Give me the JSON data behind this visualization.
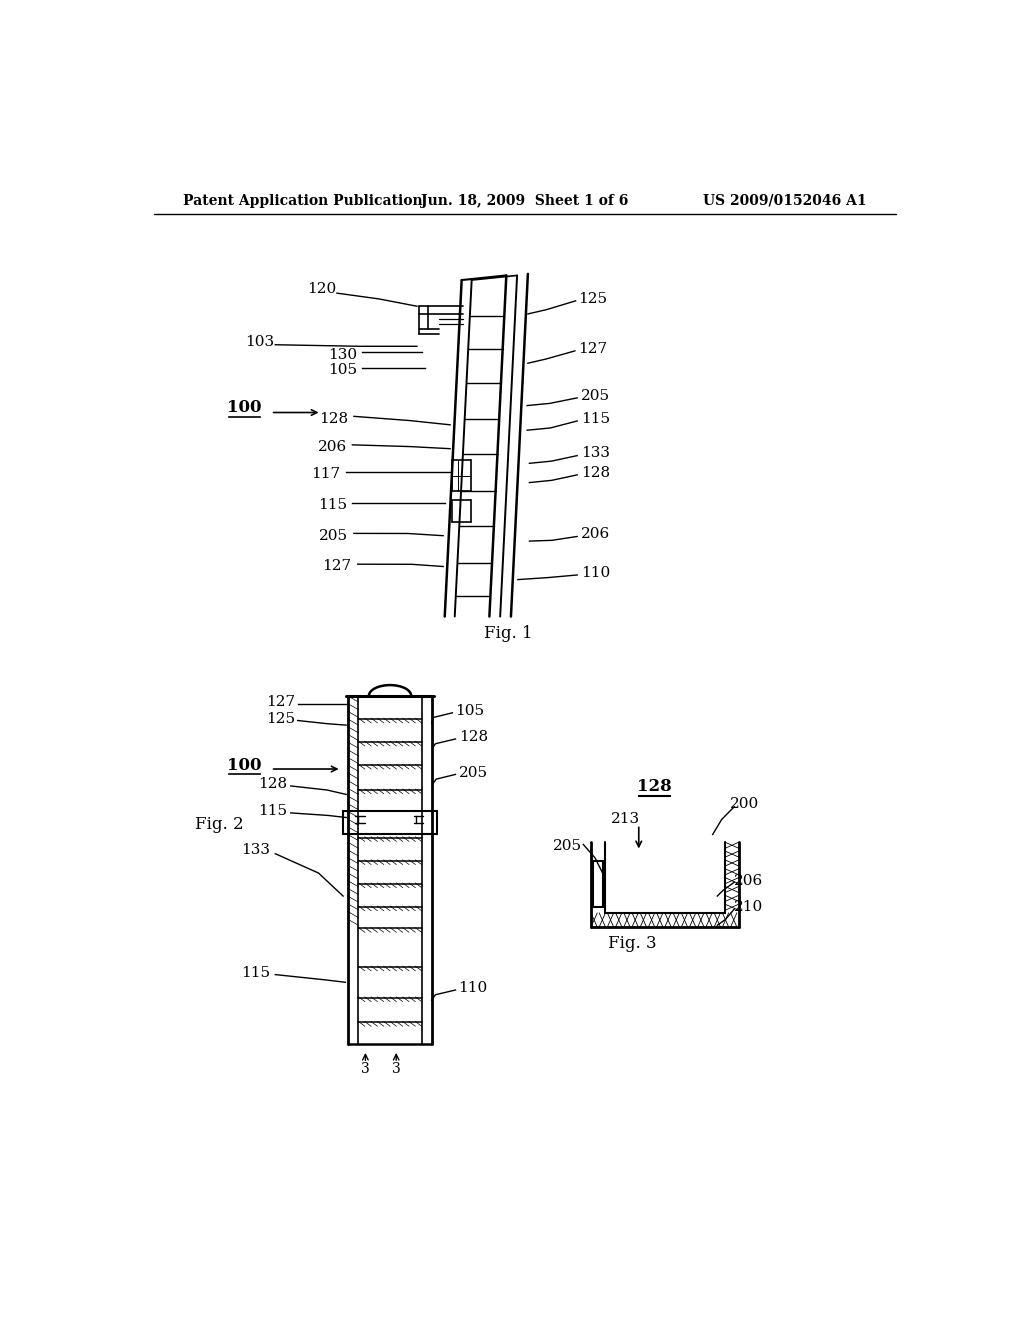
{
  "background_color": "#ffffff",
  "header_left": "Patent Application Publication",
  "header_center": "Jun. 18, 2009  Sheet 1 of 6",
  "header_right": "US 2009/0152046 A1",
  "fig1_label": "Fig. 1",
  "fig2_label": "Fig. 2",
  "fig3_label": "Fig. 3"
}
